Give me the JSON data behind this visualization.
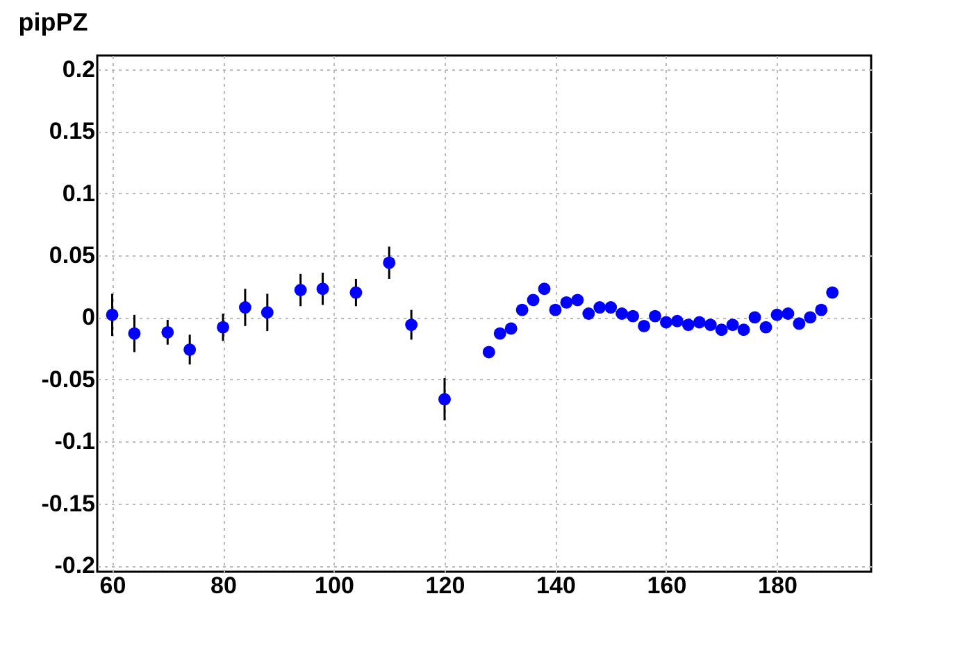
{
  "chart_data": {
    "type": "scatter",
    "title": "pipPZ",
    "x": [
      60,
      64,
      70,
      74,
      80,
      84,
      88,
      94,
      98,
      104,
      110,
      114,
      120,
      128,
      130,
      132,
      134,
      136,
      138,
      140,
      142,
      144,
      146,
      148,
      150,
      152,
      154,
      156,
      158,
      160,
      162,
      164,
      166,
      168,
      170,
      172,
      174,
      176,
      178,
      180,
      182,
      184,
      186,
      188,
      190
    ],
    "series": [
      {
        "color": "#0000ff",
        "values": [
          0.002,
          -0.013,
          -0.012,
          -0.026,
          -0.008,
          0.008,
          0.004,
          0.022,
          0.023,
          0.02,
          0.044,
          -0.006,
          -0.066,
          -0.028,
          -0.013,
          -0.009,
          0.006,
          0.014,
          0.023,
          0.006,
          0.012,
          0.014,
          0.003,
          0.008,
          0.008,
          0.003,
          0.001,
          -0.007,
          0.001,
          -0.004,
          -0.003,
          -0.006,
          -0.004,
          -0.006,
          -0.01,
          -0.006,
          -0.01,
          0.0,
          -0.008,
          0.002,
          0.003,
          -0.005,
          0.0,
          0.006,
          0.02
        ],
        "errors": [
          0.017,
          0.015,
          0.01,
          0.012,
          0.011,
          0.015,
          0.015,
          0.013,
          0.013,
          0.011,
          0.013,
          0.012,
          0.017,
          null,
          null,
          null,
          null,
          null,
          null,
          null,
          null,
          null,
          null,
          null,
          null,
          null,
          null,
          null,
          null,
          null,
          null,
          null,
          null,
          null,
          null,
          null,
          null,
          null,
          null,
          null,
          null,
          null,
          null,
          null,
          null
        ]
      }
    ],
    "xlim": [
      57.3,
      197
    ],
    "ylim": [
      -0.205,
      0.211
    ],
    "xticks": [
      60,
      80,
      100,
      120,
      140,
      160,
      180
    ],
    "yticks": [
      -0.2,
      -0.15,
      -0.1,
      -0.05,
      0,
      0.05,
      0.1,
      0.15,
      0.2
    ],
    "grid": true,
    "marker": "circle"
  }
}
